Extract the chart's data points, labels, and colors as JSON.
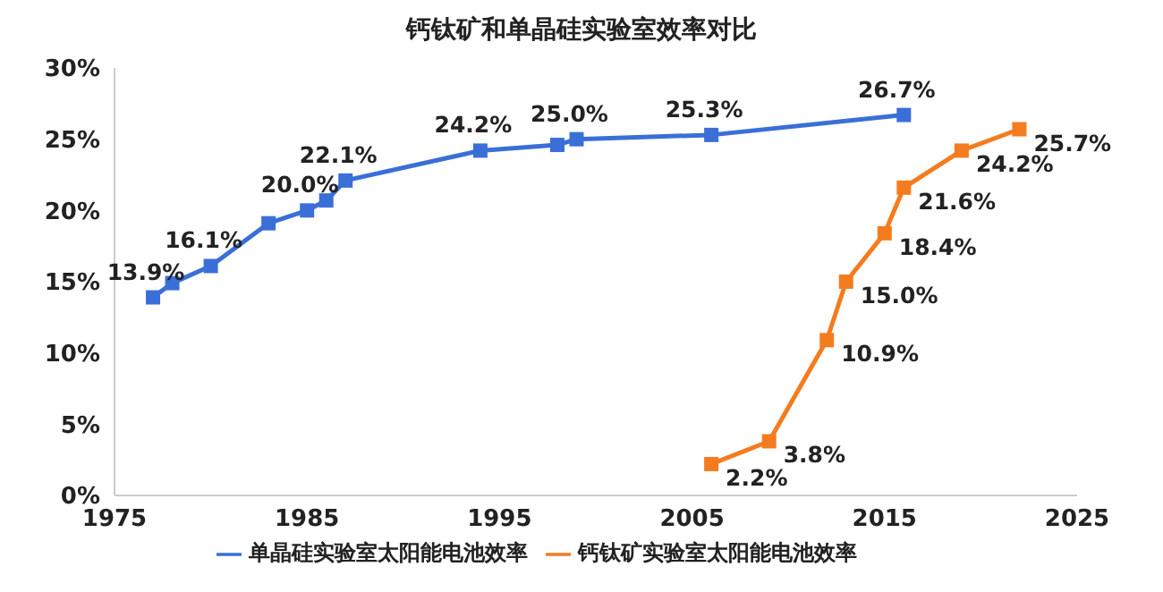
{
  "chart_data": {
    "type": "line",
    "title": "钙钛矿和单晶硅实验室效率对比",
    "xlim": [
      1975,
      2025
    ],
    "xticks": [
      1975,
      1985,
      1995,
      2005,
      2015,
      2025
    ],
    "ylim": [
      0,
      30
    ],
    "yticks": [
      {
        "value": 0,
        "label": "0%"
      },
      {
        "value": 5,
        "label": "5%"
      },
      {
        "value": 10,
        "label": "10%"
      },
      {
        "value": 15,
        "label": "15%"
      },
      {
        "value": 20,
        "label": "20%"
      },
      {
        "value": 25,
        "label": "25%"
      },
      {
        "value": 30,
        "label": "30%"
      }
    ],
    "marker": "square",
    "legend": "bottom",
    "series": [
      {
        "name": "单晶硅实验室太阳能电池效率",
        "color": "#3a6fd8",
        "x": [
          1977,
          1978,
          1980,
          1983,
          1985,
          1986,
          1987,
          1994,
          1998,
          1999,
          2006,
          2016
        ],
        "values": [
          13.9,
          14.9,
          16.1,
          19.1,
          20.0,
          20.7,
          22.1,
          24.2,
          24.6,
          25.0,
          25.3,
          26.7
        ],
        "value_labels": [
          "13.9%",
          null,
          "16.1%",
          null,
          "20.0%",
          null,
          "22.1%",
          "24.2%",
          null,
          "25.0%",
          "25.3%",
          "26.7%"
        ]
      },
      {
        "name": "钙钛矿实验室太阳能电池效率",
        "color": "#f47c1f",
        "x": [
          2006,
          2009,
          2012,
          2013,
          2015,
          2016,
          2019,
          2022
        ],
        "values": [
          2.2,
          3.8,
          10.9,
          15.0,
          18.4,
          21.6,
          24.2,
          25.7
        ],
        "value_labels": [
          "2.2%",
          "3.8%",
          "10.9%",
          "15.0%",
          "18.4%",
          "21.6%",
          "24.2%",
          "25.7%"
        ]
      }
    ]
  }
}
